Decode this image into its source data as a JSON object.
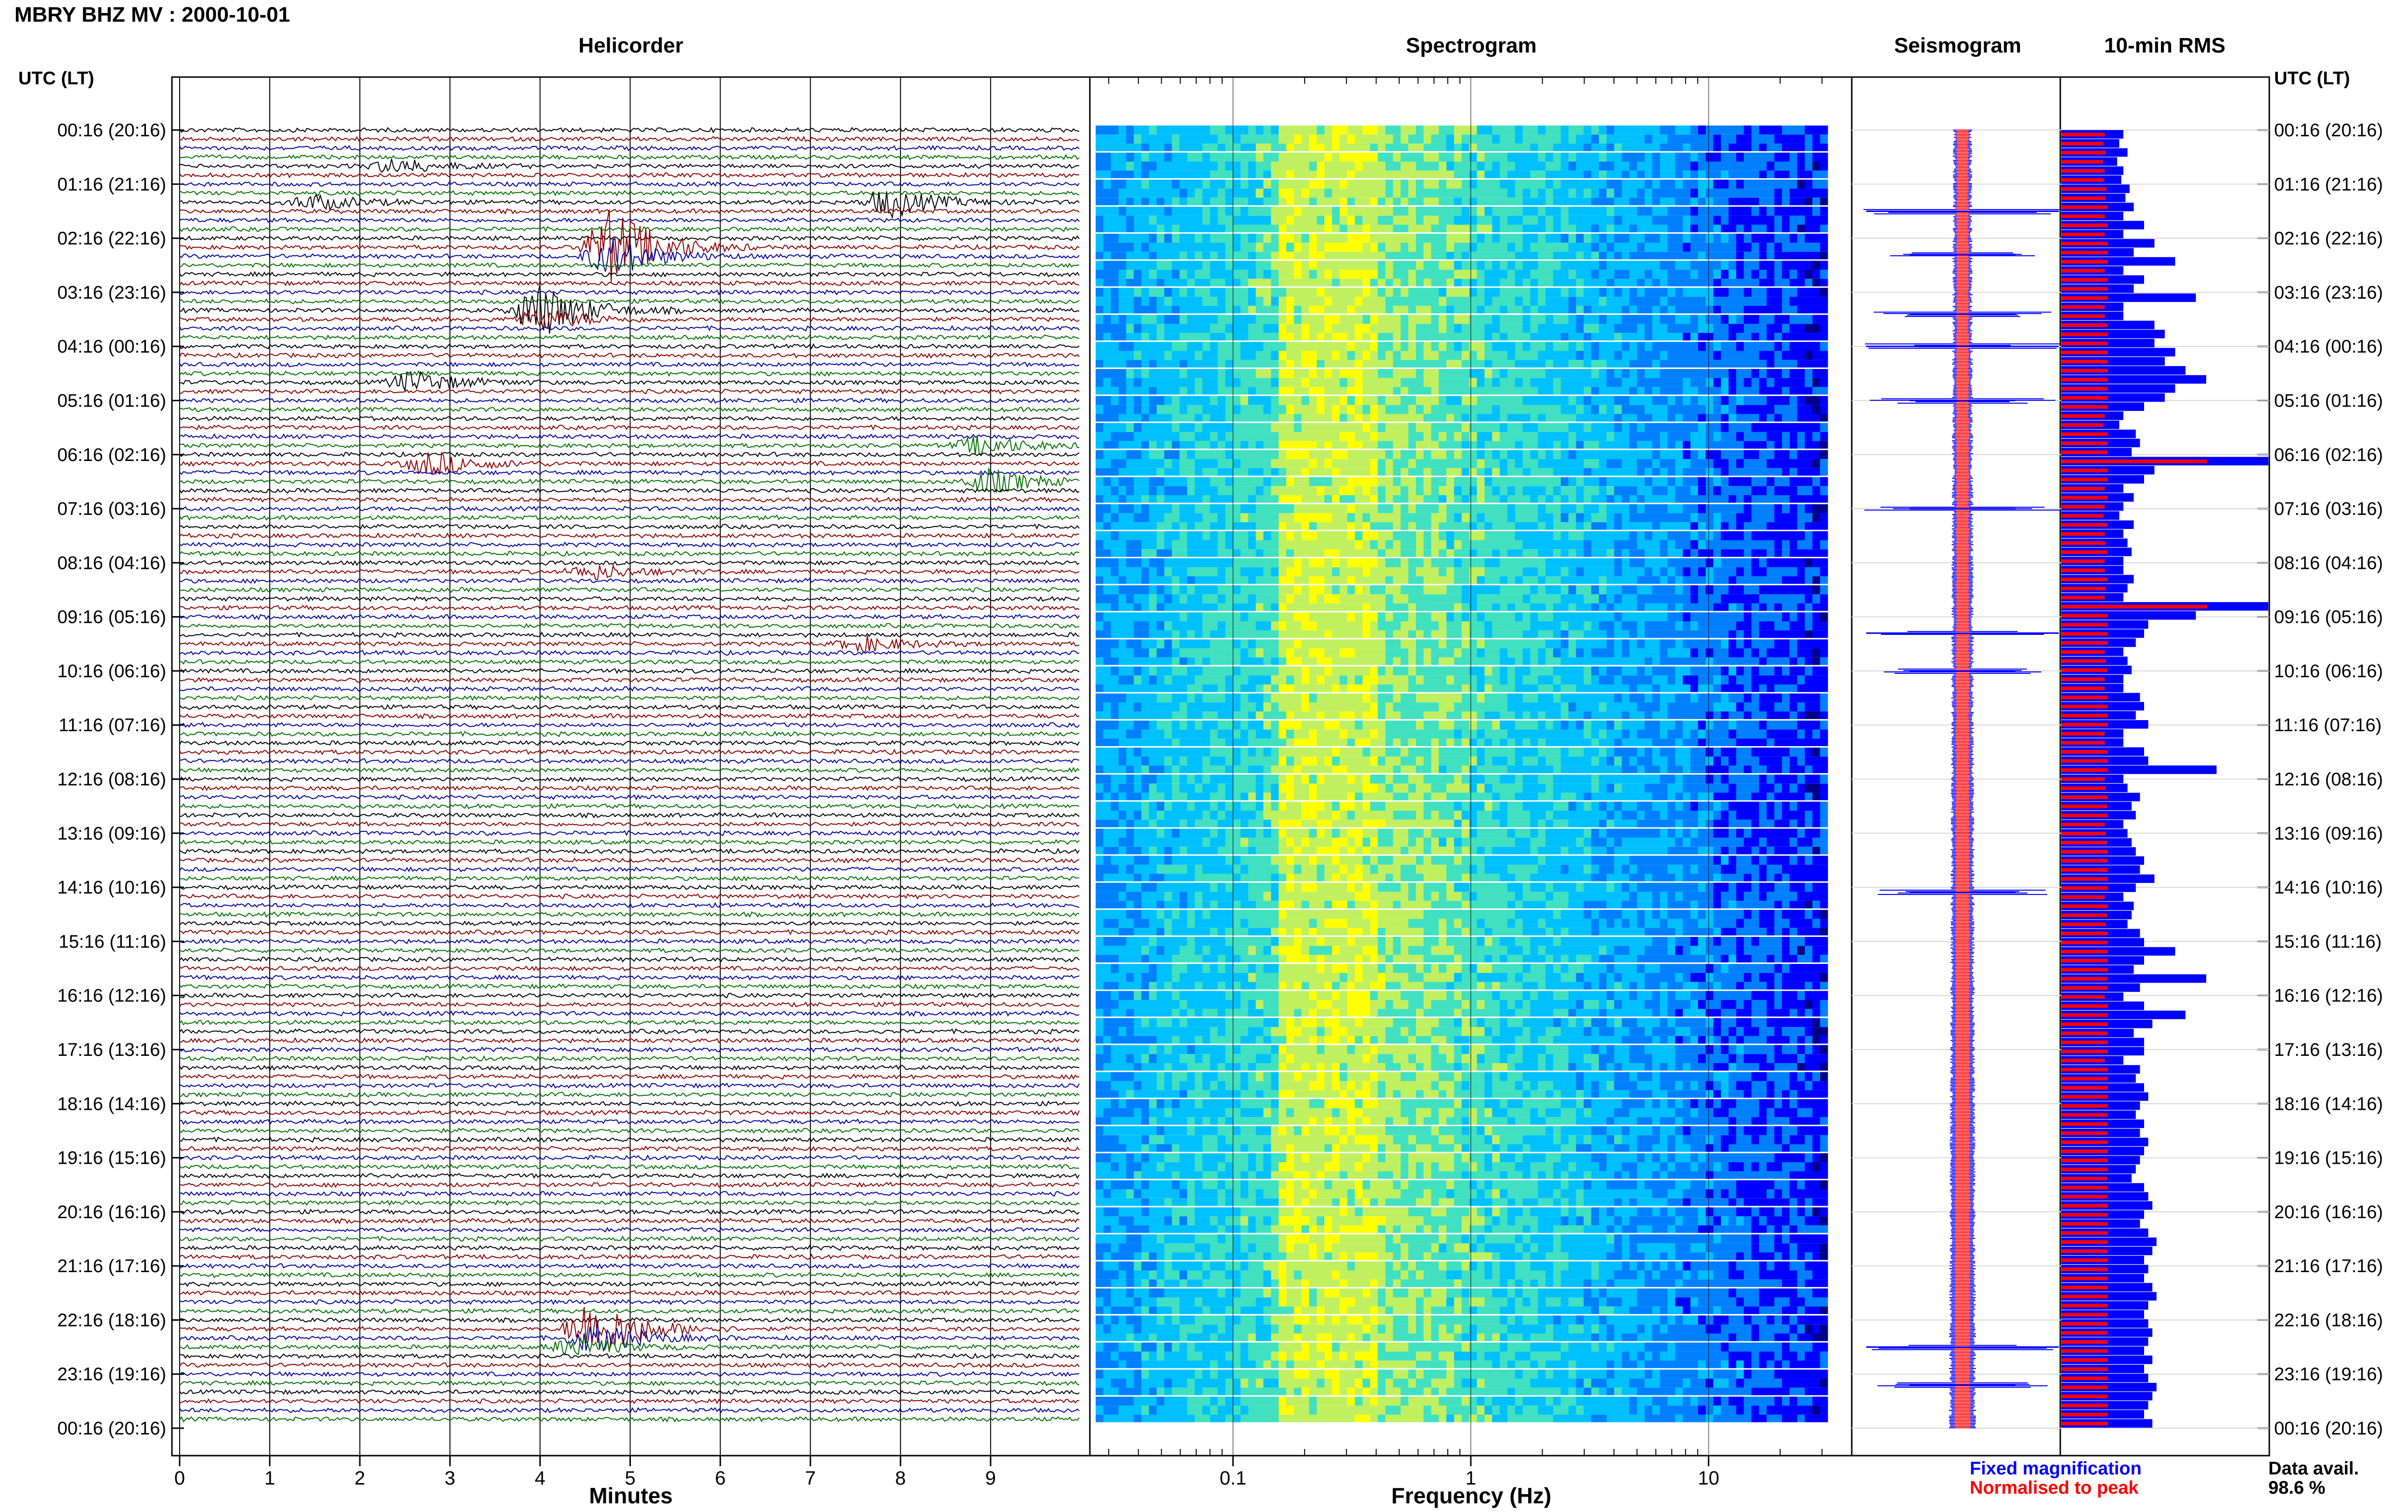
{
  "title": "MBRY BHZ MV : 2000-10-01",
  "panels": {
    "helicorder": "Helicorder",
    "spectrogram": "Spectrogram",
    "seismogram": "Seismogram",
    "rms": "10-min RMS"
  },
  "axis_head_left": "UTC (LT)",
  "axis_head_right": "UTC (LT)",
  "xlabels": {
    "helicorder": "Minutes",
    "spectrogram": "Frequency (Hz)"
  },
  "legend": {
    "fixed": "Fixed magnification",
    "normalised": "Normalised to peak",
    "fixed_color": "#0000ff",
    "normalised_color": "#ff0000"
  },
  "data_avail": {
    "label": "Data avail.",
    "value": "98.6 %"
  },
  "colors": {
    "trace_cycle": [
      "#000000",
      "#8b0000",
      "#0000a0",
      "#007000"
    ],
    "fixed": "#0000ff",
    "normalised": "#ff0000"
  },
  "chart_data": [
    {
      "type": "line",
      "name": "helicorder",
      "title": "Helicorder",
      "xlabel": "Minutes",
      "x_ticks": [
        0,
        1,
        2,
        3,
        4,
        5,
        6,
        7,
        8,
        9
      ],
      "xlim": [
        0,
        10
      ],
      "rows_per_hour": 6,
      "row_minutes": 10,
      "y_tick_labels": [
        "00:16 (20:16)",
        "01:16 (21:16)",
        "02:16 (22:16)",
        "03:16 (23:16)",
        "04:16 (00:16)",
        "05:16 (01:16)",
        "06:16 (02:16)",
        "07:16 (03:16)",
        "08:16 (04:16)",
        "09:16 (05:16)",
        "10:16 (06:16)",
        "11:16 (07:16)",
        "12:16 (08:16)",
        "13:16 (09:16)",
        "14:16 (10:16)",
        "15:16 (11:16)",
        "16:16 (12:16)",
        "17:16 (13:16)",
        "18:16 (14:16)",
        "19:16 (15:16)",
        "20:16 (16:16)",
        "21:16 (17:16)",
        "22:16 (18:16)",
        "23:16 (19:16)",
        "00:16 (20:16)"
      ],
      "events": [
        {
          "row": 4,
          "minute": 2.4,
          "amp": 0.9
        },
        {
          "row": 8,
          "minute": 1.5,
          "amp": 0.9
        },
        {
          "row": 8,
          "minute": 7.9,
          "amp": 1.8
        },
        {
          "row": 13,
          "minute": 4.8,
          "amp": 5.0
        },
        {
          "row": 14,
          "minute": 4.8,
          "amp": 2.5
        },
        {
          "row": 20,
          "minute": 4.0,
          "amp": 3.5
        },
        {
          "row": 21,
          "minute": 4.0,
          "amp": 1.4
        },
        {
          "row": 28,
          "minute": 2.6,
          "amp": 1.4
        },
        {
          "row": 35,
          "minute": 8.9,
          "amp": 1.2
        },
        {
          "row": 37,
          "minute": 2.8,
          "amp": 1.5
        },
        {
          "row": 39,
          "minute": 9.0,
          "amp": 1.5
        },
        {
          "row": 49,
          "minute": 4.6,
          "amp": 0.9
        },
        {
          "row": 57,
          "minute": 7.6,
          "amp": 0.9
        },
        {
          "row": 133,
          "minute": 4.6,
          "amp": 4.0
        },
        {
          "row": 134,
          "minute": 4.6,
          "amp": 2.0
        },
        {
          "row": 135,
          "minute": 4.4,
          "amp": 1.2
        }
      ]
    },
    {
      "type": "heatmap",
      "name": "spectrogram",
      "title": "Spectrogram",
      "xlabel": "Frequency (Hz)",
      "x_scale": "log",
      "xlim": [
        0.025,
        40
      ],
      "x_ticks": [
        0.1,
        1,
        10
      ],
      "y_tick_labels": [
        "00:16 (20:16)",
        "01:16 (21:16)",
        "02:16 (22:16)",
        "03:16 (23:16)",
        "04:16 (00:16)",
        "05:16 (01:16)",
        "06:16 (02:16)",
        "07:16 (03:16)",
        "08:16 (04:16)",
        "09:16 (05:16)",
        "10:16 (06:16)",
        "11:16 (07:16)",
        "12:16 (08:16)",
        "13:16 (09:16)",
        "14:16 (10:16)",
        "15:16 (11:16)",
        "16:16 (12:16)",
        "17:16 (13:16)",
        "18:16 (14:16)",
        "19:16 (15:16)",
        "20:16 (16:16)",
        "21:16 (17:16)",
        "22:16 (18:16)",
        "23:16 (19:16)",
        "00:16 (20:16)"
      ],
      "colormap": [
        "#00008b",
        "#0000ff",
        "#0080ff",
        "#00c0ff",
        "#40e0c0",
        "#c0f060",
        "#ffff00"
      ],
      "peak_band_hz": [
        0.15,
        0.4
      ]
    },
    {
      "type": "line",
      "name": "seismogram",
      "title": "Seismogram",
      "spikes_hours": [
        1.5,
        2.3,
        3.4,
        4.0,
        5.0,
        7.0,
        9.3,
        10.0,
        14.1,
        22.5,
        23.2
      ]
    },
    {
      "type": "bar",
      "name": "rms",
      "title": "10-min RMS",
      "series": [
        {
          "name": "Fixed magnification",
          "color": "#0000ff"
        },
        {
          "name": "Normalised to peak",
          "color": "#ff0000"
        }
      ],
      "fixed_rms_relative": [
        0.3,
        0.28,
        0.32,
        0.27,
        0.3,
        0.29,
        0.33,
        0.31,
        0.35,
        0.3,
        0.4,
        0.3,
        0.45,
        0.35,
        0.55,
        0.3,
        0.4,
        0.35,
        0.65,
        0.3,
        0.3,
        0.45,
        0.5,
        0.45,
        0.55,
        0.5,
        0.6,
        0.7,
        0.55,
        0.5,
        0.4,
        0.3,
        0.28,
        0.36,
        0.38,
        0.34,
        1.0,
        0.45,
        0.4,
        0.3,
        0.35,
        0.3,
        0.28,
        0.35,
        0.3,
        0.32,
        0.34,
        0.3,
        0.3,
        0.35,
        0.32,
        0.3,
        1.0,
        0.65,
        0.42,
        0.4,
        0.36,
        0.3,
        0.32,
        0.34,
        0.3,
        0.3,
        0.38,
        0.4,
        0.36,
        0.42,
        0.3,
        0.3,
        0.4,
        0.42,
        0.75,
        0.3,
        0.32,
        0.38,
        0.34,
        0.36,
        0.3,
        0.32,
        0.34,
        0.36,
        0.4,
        0.38,
        0.45,
        0.36,
        0.3,
        0.35,
        0.34,
        0.32,
        0.38,
        0.4,
        0.55,
        0.4,
        0.35,
        0.7,
        0.38,
        0.3,
        0.4,
        0.6,
        0.44,
        0.35,
        0.4,
        0.4,
        0.3,
        0.38,
        0.36,
        0.4,
        0.42,
        0.38,
        0.36,
        0.4,
        0.38,
        0.42,
        0.4,
        0.38,
        0.36,
        0.34,
        0.4,
        0.42,
        0.44,
        0.4,
        0.38,
        0.42,
        0.46,
        0.44,
        0.4,
        0.42,
        0.4,
        0.44,
        0.46,
        0.42,
        0.4,
        0.42,
        0.44,
        0.42,
        0.4,
        0.44,
        0.4,
        0.42,
        0.46,
        0.44,
        0.42,
        0.4,
        0.44
      ]
    }
  ]
}
